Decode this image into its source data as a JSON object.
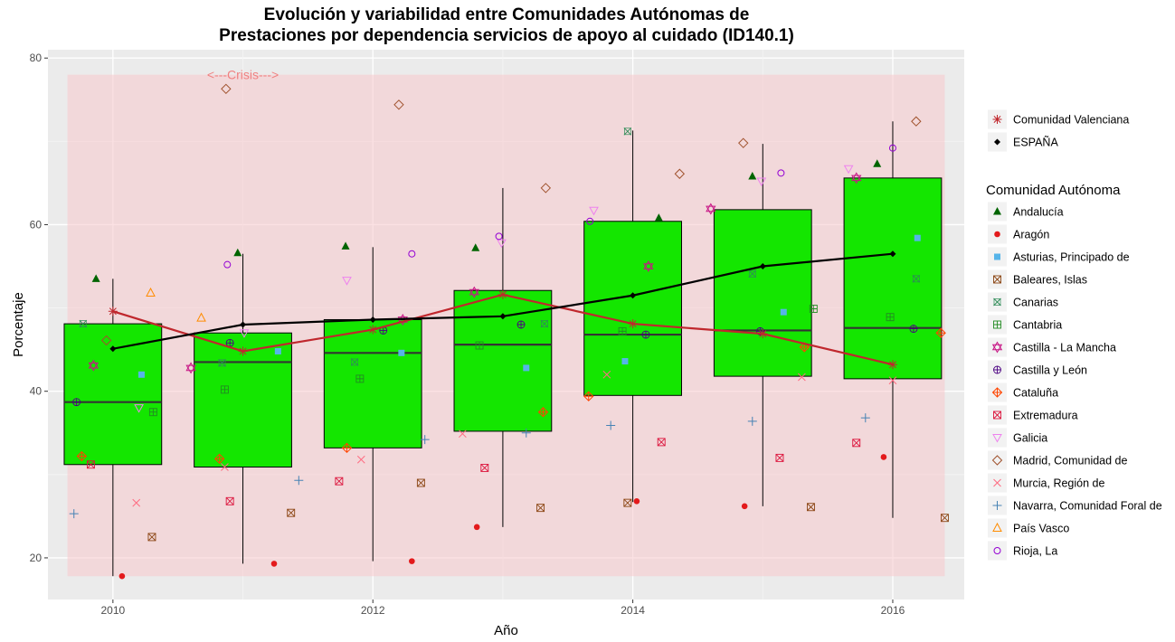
{
  "chart_data": {
    "type": "boxplot",
    "title_line1": "Evolución y variabilidad entre Comunidades Autónomas de",
    "title_line2": "Prestaciones por dependencia servicios de apoyo al cuidado (ID140.1)",
    "xlabel": "Año",
    "ylabel": "Porcentaje",
    "xlim": [
      2009.5,
      2016.55
    ],
    "ylim": [
      15,
      81
    ],
    "x_ticks": [
      2010,
      2012,
      2014,
      2016
    ],
    "x_tick_labels": [
      "2010",
      "2012",
      "2014",
      "2016"
    ],
    "y_ticks": [
      20,
      40,
      60,
      80
    ],
    "y_tick_labels": [
      "20",
      "40",
      "60",
      "80"
    ],
    "grid": true,
    "crisis": {
      "label": "<---Crisis--->",
      "x_start": 2009.65,
      "x_end": 2016.4,
      "y_min": 17.8,
      "y_max": 78,
      "label_x": 2011,
      "label_y": 78,
      "color": "#F8C8CC"
    },
    "boxes": [
      {
        "x": 2010,
        "min": 17.8,
        "q1": 31.2,
        "median": 38.7,
        "q3": 48.1,
        "max": 53.5
      },
      {
        "x": 2011,
        "min": 19.3,
        "q1": 30.9,
        "median": 43.5,
        "q3": 47.0,
        "max": 56.5
      },
      {
        "x": 2012,
        "min": 19.6,
        "q1": 33.2,
        "median": 44.6,
        "q3": 48.6,
        "max": 57.3
      },
      {
        "x": 2013,
        "min": 23.7,
        "q1": 35.2,
        "median": 45.6,
        "q3": 52.1,
        "max": 64.4
      },
      {
        "x": 2014,
        "min": 26.7,
        "q1": 39.5,
        "median": 46.8,
        "q3": 60.4,
        "max": 71.3
      },
      {
        "x": 2015,
        "min": 26.2,
        "q1": 41.8,
        "median": 47.3,
        "q3": 61.8,
        "max": 69.7
      },
      {
        "x": 2016,
        "min": 24.8,
        "q1": 41.5,
        "median": 47.6,
        "q3": 65.6,
        "max": 72.4
      }
    ],
    "box_fill": "#14E600",
    "lines": [
      {
        "name": "Comunidad Valenciana",
        "color": "#C0272D",
        "marker": "asterisk",
        "x": [
          2010,
          2011,
          2012,
          2013,
          2014,
          2015,
          2016
        ],
        "y": [
          49.6,
          44.8,
          47.4,
          51.6,
          48.1,
          46.9,
          43.2
        ]
      },
      {
        "name": "ESPAÑA",
        "color": "#000000",
        "marker": "diamond",
        "x": [
          2010,
          2011,
          2012,
          2013,
          2014,
          2015,
          2016
        ],
        "y": [
          45.1,
          48.0,
          48.6,
          49.0,
          51.5,
          55.0,
          56.5
        ]
      }
    ],
    "legend_top": [
      {
        "name": "Comunidad Valenciana",
        "color": "#C0272D",
        "marker": "asterisk"
      },
      {
        "name": "ESPAÑA",
        "color": "#000000",
        "marker": "diamond"
      }
    ],
    "legend_title": "Comunidad Autónoma",
    "legend_regions": [
      {
        "name": "Andalucía",
        "color": "#006400",
        "marker": "triangle"
      },
      {
        "name": "Aragón",
        "color": "#E31A1C",
        "marker": "dot"
      },
      {
        "name": "Asturias, Principado de",
        "color": "#56B4E9",
        "marker": "square-filled"
      },
      {
        "name": "Baleares, Islas",
        "color": "#8B4513",
        "marker": "square-x"
      },
      {
        "name": "Canarias",
        "color": "#2E8B57",
        "marker": "square-cross"
      },
      {
        "name": "Cantabria",
        "color": "#228B22",
        "marker": "square-plus"
      },
      {
        "name": "Castilla - La Mancha",
        "color": "#C71585",
        "marker": "star6"
      },
      {
        "name": "Castilla y León",
        "color": "#4B0082",
        "marker": "circle-plus"
      },
      {
        "name": "Cataluña",
        "color": "#FF4500",
        "marker": "diamond-plus"
      },
      {
        "name": "Extremadura",
        "color": "#DC143C",
        "marker": "square-x"
      },
      {
        "name": "Galicia",
        "color": "#EE82EE",
        "marker": "triangle-down"
      },
      {
        "name": "Madrid, Comunidad de",
        "color": "#A0522D",
        "marker": "diamond-open"
      },
      {
        "name": "Murcia, Región de",
        "color": "#FF6B81",
        "marker": "x"
      },
      {
        "name": "Navarra, Comunidad Foral de",
        "color": "#4682B4",
        "marker": "plus"
      },
      {
        "name": "País Vasco",
        "color": "#FF8C00",
        "marker": "triangle-open"
      },
      {
        "name": "Rioja, La",
        "color": "#9400D3",
        "marker": "circle-open"
      }
    ],
    "points": [
      {
        "region": "Andalucía",
        "x": 2009.87,
        "y": 53.5
      },
      {
        "region": "Andalucía",
        "x": 2010.96,
        "y": 56.6
      },
      {
        "region": "Andalucía",
        "x": 2011.79,
        "y": 57.4
      },
      {
        "region": "Andalucía",
        "x": 2012.79,
        "y": 57.2
      },
      {
        "region": "Andalucía",
        "x": 2014.2,
        "y": 60.8
      },
      {
        "region": "Andalucía",
        "x": 2014.92,
        "y": 65.8
      },
      {
        "region": "Andalucía",
        "x": 2015.88,
        "y": 67.3
      },
      {
        "region": "Aragón",
        "x": 2010.07,
        "y": 17.8
      },
      {
        "region": "Aragón",
        "x": 2011.24,
        "y": 19.3
      },
      {
        "region": "Aragón",
        "x": 2012.3,
        "y": 19.6
      },
      {
        "region": "Aragón",
        "x": 2012.8,
        "y": 23.7
      },
      {
        "region": "Aragón",
        "x": 2014.03,
        "y": 26.8
      },
      {
        "region": "Aragón",
        "x": 2014.86,
        "y": 26.2
      },
      {
        "region": "Aragón",
        "x": 2015.93,
        "y": 32.1
      },
      {
        "region": "Asturias, Principado de",
        "x": 2010.22,
        "y": 42.0
      },
      {
        "region": "Asturias, Principado de",
        "x": 2011.27,
        "y": 44.8
      },
      {
        "region": "Asturias, Principado de",
        "x": 2012.22,
        "y": 44.6
      },
      {
        "region": "Asturias, Principado de",
        "x": 2013.18,
        "y": 42.8
      },
      {
        "region": "Asturias, Principado de",
        "x": 2013.94,
        "y": 43.6
      },
      {
        "region": "Asturias, Principado de",
        "x": 2015.16,
        "y": 49.5
      },
      {
        "region": "Asturias, Principado de",
        "x": 2016.19,
        "y": 58.4
      },
      {
        "region": "Baleares, Islas",
        "x": 2010.3,
        "y": 22.5
      },
      {
        "region": "Baleares, Islas",
        "x": 2011.37,
        "y": 25.4
      },
      {
        "region": "Baleares, Islas",
        "x": 2012.37,
        "y": 29.0
      },
      {
        "region": "Baleares, Islas",
        "x": 2013.29,
        "y": 26.0
      },
      {
        "region": "Baleares, Islas",
        "x": 2013.96,
        "y": 26.6
      },
      {
        "region": "Baleares, Islas",
        "x": 2015.37,
        "y": 26.1
      },
      {
        "region": "Baleares, Islas",
        "x": 2016.4,
        "y": 24.8
      },
      {
        "region": "Canarias",
        "x": 2009.77,
        "y": 48.1
      },
      {
        "region": "Canarias",
        "x": 2010.84,
        "y": 43.4
      },
      {
        "region": "Canarias",
        "x": 2011.86,
        "y": 43.5
      },
      {
        "region": "Canarias",
        "x": 2013.32,
        "y": 48.1
      },
      {
        "region": "Canarias",
        "x": 2013.96,
        "y": 71.2
      },
      {
        "region": "Canarias",
        "x": 2014.92,
        "y": 54.1
      },
      {
        "region": "Canarias",
        "x": 2016.18,
        "y": 53.5
      },
      {
        "region": "Cantabria",
        "x": 2010.31,
        "y": 37.5
      },
      {
        "region": "Cantabria",
        "x": 2010.86,
        "y": 40.2
      },
      {
        "region": "Cantabria",
        "x": 2011.9,
        "y": 41.5
      },
      {
        "region": "Cantabria",
        "x": 2012.82,
        "y": 45.5
      },
      {
        "region": "Cantabria",
        "x": 2013.92,
        "y": 47.2
      },
      {
        "region": "Cantabria",
        "x": 2015.39,
        "y": 49.9
      },
      {
        "region": "Cantabria",
        "x": 2015.98,
        "y": 48.9
      },
      {
        "region": "Castilla - La Mancha",
        "x": 2009.85,
        "y": 43.1
      },
      {
        "region": "Castilla - La Mancha",
        "x": 2010.6,
        "y": 42.8
      },
      {
        "region": "Castilla - La Mancha",
        "x": 2012.23,
        "y": 48.6
      },
      {
        "region": "Castilla - La Mancha",
        "x": 2012.78,
        "y": 51.9
      },
      {
        "region": "Castilla - La Mancha",
        "x": 2014.12,
        "y": 55.0
      },
      {
        "region": "Castilla - La Mancha",
        "x": 2014.6,
        "y": 61.9
      },
      {
        "region": "Castilla - La Mancha",
        "x": 2015.72,
        "y": 65.6
      },
      {
        "region": "Castilla y León",
        "x": 2009.72,
        "y": 38.7
      },
      {
        "region": "Castilla y León",
        "x": 2010.9,
        "y": 45.8
      },
      {
        "region": "Castilla y León",
        "x": 2012.08,
        "y": 47.3
      },
      {
        "region": "Castilla y León",
        "x": 2013.14,
        "y": 48.0
      },
      {
        "region": "Castilla y León",
        "x": 2014.1,
        "y": 46.8
      },
      {
        "region": "Castilla y León",
        "x": 2014.98,
        "y": 47.2
      },
      {
        "region": "Castilla y León",
        "x": 2016.16,
        "y": 47.5
      },
      {
        "region": "Cataluña",
        "x": 2009.76,
        "y": 32.2
      },
      {
        "region": "Cataluña",
        "x": 2010.82,
        "y": 31.9
      },
      {
        "region": "Cataluña",
        "x": 2011.8,
        "y": 33.2
      },
      {
        "region": "Cataluña",
        "x": 2013.31,
        "y": 37.5
      },
      {
        "region": "Cataluña",
        "x": 2013.66,
        "y": 39.4
      },
      {
        "region": "Cataluña",
        "x": 2015.32,
        "y": 45.3
      },
      {
        "region": "Cataluña",
        "x": 2016.37,
        "y": 47.0
      },
      {
        "region": "Extremadura",
        "x": 2009.83,
        "y": 31.2
      },
      {
        "region": "Extremadura",
        "x": 2010.9,
        "y": 26.8
      },
      {
        "region": "Extremadura",
        "x": 2011.74,
        "y": 29.2
      },
      {
        "region": "Extremadura",
        "x": 2012.86,
        "y": 30.8
      },
      {
        "region": "Extremadura",
        "x": 2014.22,
        "y": 33.9
      },
      {
        "region": "Extremadura",
        "x": 2015.13,
        "y": 32.0
      },
      {
        "region": "Extremadura",
        "x": 2015.72,
        "y": 33.8
      },
      {
        "region": "Galicia",
        "x": 2010.2,
        "y": 38.0
      },
      {
        "region": "Galicia",
        "x": 2011.01,
        "y": 47.0
      },
      {
        "region": "Galicia",
        "x": 2011.8,
        "y": 53.3
      },
      {
        "region": "Galicia",
        "x": 2012.99,
        "y": 57.8
      },
      {
        "region": "Galicia",
        "x": 2013.7,
        "y": 61.7
      },
      {
        "region": "Galicia",
        "x": 2014.99,
        "y": 65.2
      },
      {
        "region": "Galicia",
        "x": 2015.66,
        "y": 66.7
      },
      {
        "region": "Madrid, Comunidad de",
        "x": 2010.87,
        "y": 76.3
      },
      {
        "region": "Madrid, Comunidad de",
        "x": 2012.2,
        "y": 74.4
      },
      {
        "region": "Madrid, Comunidad de",
        "x": 2013.33,
        "y": 64.4
      },
      {
        "region": "Madrid, Comunidad de",
        "x": 2014.36,
        "y": 66.1
      },
      {
        "region": "Madrid, Comunidad de",
        "x": 2014.85,
        "y": 69.8
      },
      {
        "region": "Madrid, Comunidad de",
        "x": 2016.18,
        "y": 72.4
      },
      {
        "region": "Madrid, Comunidad de",
        "x": 2009.95,
        "y": 46.1
      },
      {
        "region": "Murcia, Región de",
        "x": 2010.18,
        "y": 26.6
      },
      {
        "region": "Murcia, Región de",
        "x": 2010.86,
        "y": 30.9
      },
      {
        "region": "Murcia, Región de",
        "x": 2011.91,
        "y": 31.8
      },
      {
        "region": "Murcia, Región de",
        "x": 2012.69,
        "y": 34.9
      },
      {
        "region": "Murcia, Región de",
        "x": 2013.8,
        "y": 42.0
      },
      {
        "region": "Murcia, Región de",
        "x": 2015.3,
        "y": 41.7
      },
      {
        "region": "Murcia, Región de",
        "x": 2016.0,
        "y": 41.3
      },
      {
        "region": "Navarra, Comunidad Foral de",
        "x": 2009.7,
        "y": 25.3
      },
      {
        "region": "Navarra, Comunidad Foral de",
        "x": 2011.43,
        "y": 29.3
      },
      {
        "region": "Navarra, Comunidad Foral de",
        "x": 2012.4,
        "y": 34.2
      },
      {
        "region": "Navarra, Comunidad Foral de",
        "x": 2013.18,
        "y": 35.0
      },
      {
        "region": "Navarra, Comunidad Foral de",
        "x": 2013.83,
        "y": 35.9
      },
      {
        "region": "Navarra, Comunidad Foral de",
        "x": 2014.92,
        "y": 36.4
      },
      {
        "region": "Navarra, Comunidad Foral de",
        "x": 2015.79,
        "y": 36.8
      },
      {
        "region": "País Vasco",
        "x": 2010.29,
        "y": 51.8
      },
      {
        "region": "País Vasco",
        "x": 2010.68,
        "y": 48.8
      },
      {
        "region": "Rioja, La",
        "x": 2010.88,
        "y": 55.2
      },
      {
        "region": "Rioja, La",
        "x": 2012.3,
        "y": 56.5
      },
      {
        "region": "Rioja, La",
        "x": 2012.97,
        "y": 58.6
      },
      {
        "region": "Rioja, La",
        "x": 2013.67,
        "y": 60.4
      },
      {
        "region": "Rioja, La",
        "x": 2015.14,
        "y": 66.2
      },
      {
        "region": "Rioja, La",
        "x": 2016.0,
        "y": 69.2
      }
    ]
  }
}
